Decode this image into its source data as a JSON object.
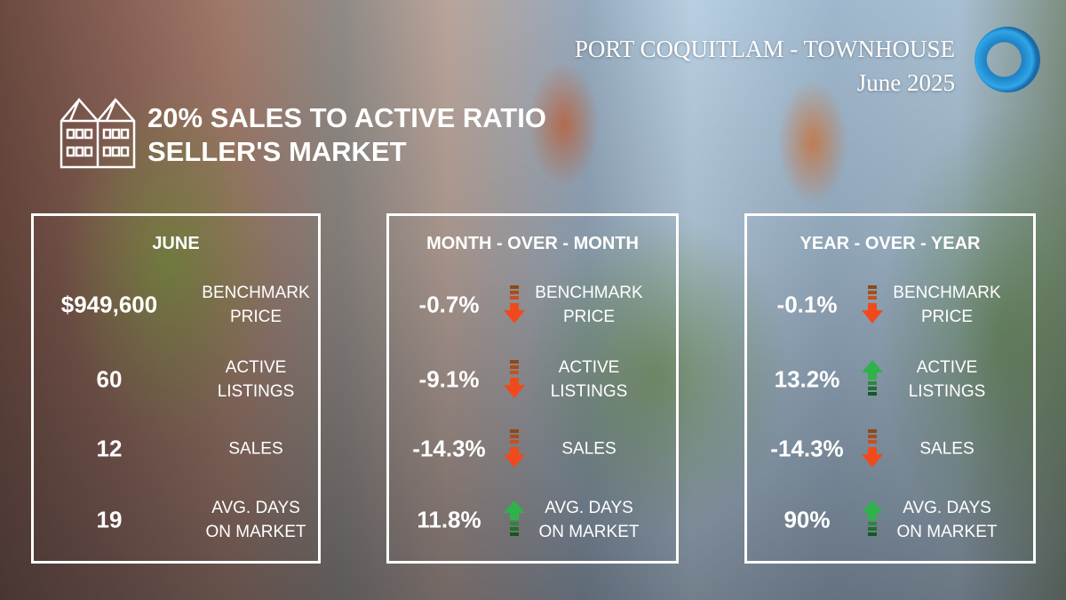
{
  "header": {
    "title": "PORT COQUITLAM - TOWNHOUSE",
    "date": "June 2025",
    "ratio_line": "20% SALES TO ACTIVE RATIO",
    "market_line": "SELLER'S MARKET"
  },
  "colors": {
    "down": "#f04a1c",
    "up": "#2fb24a"
  },
  "panels": [
    {
      "title": "JUNE",
      "rows": [
        {
          "value": "$949,600",
          "label1": "BENCHMARK",
          "label2": "PRICE"
        },
        {
          "value": "60",
          "label1": "ACTIVE",
          "label2": "LISTINGS"
        },
        {
          "value": "12",
          "label1": "SALES",
          "label2": ""
        },
        {
          "value": "19",
          "label1": "AVG. DAYS",
          "label2": "ON MARKET"
        }
      ]
    },
    {
      "title": "MONTH - OVER - MONTH",
      "rows": [
        {
          "value": "-0.7%",
          "dir": "down",
          "label1": "BENCHMARK",
          "label2": "PRICE"
        },
        {
          "value": "-9.1%",
          "dir": "down",
          "label1": "ACTIVE",
          "label2": "LISTINGS"
        },
        {
          "value": "-14.3%",
          "dir": "down",
          "label1": "SALES",
          "label2": ""
        },
        {
          "value": "11.8%",
          "dir": "up",
          "label1": "AVG. DAYS",
          "label2": "ON MARKET"
        }
      ]
    },
    {
      "title": "YEAR - OVER - YEAR",
      "rows": [
        {
          "value": "-0.1%",
          "dir": "down",
          "label1": "BENCHMARK",
          "label2": "PRICE"
        },
        {
          "value": "13.2%",
          "dir": "up",
          "label1": "ACTIVE",
          "label2": "LISTINGS"
        },
        {
          "value": "-14.3%",
          "dir": "down",
          "label1": "SALES",
          "label2": ""
        },
        {
          "value": "90%",
          "dir": "up",
          "label1": "AVG. DAYS",
          "label2": "ON MARKET"
        }
      ]
    }
  ]
}
